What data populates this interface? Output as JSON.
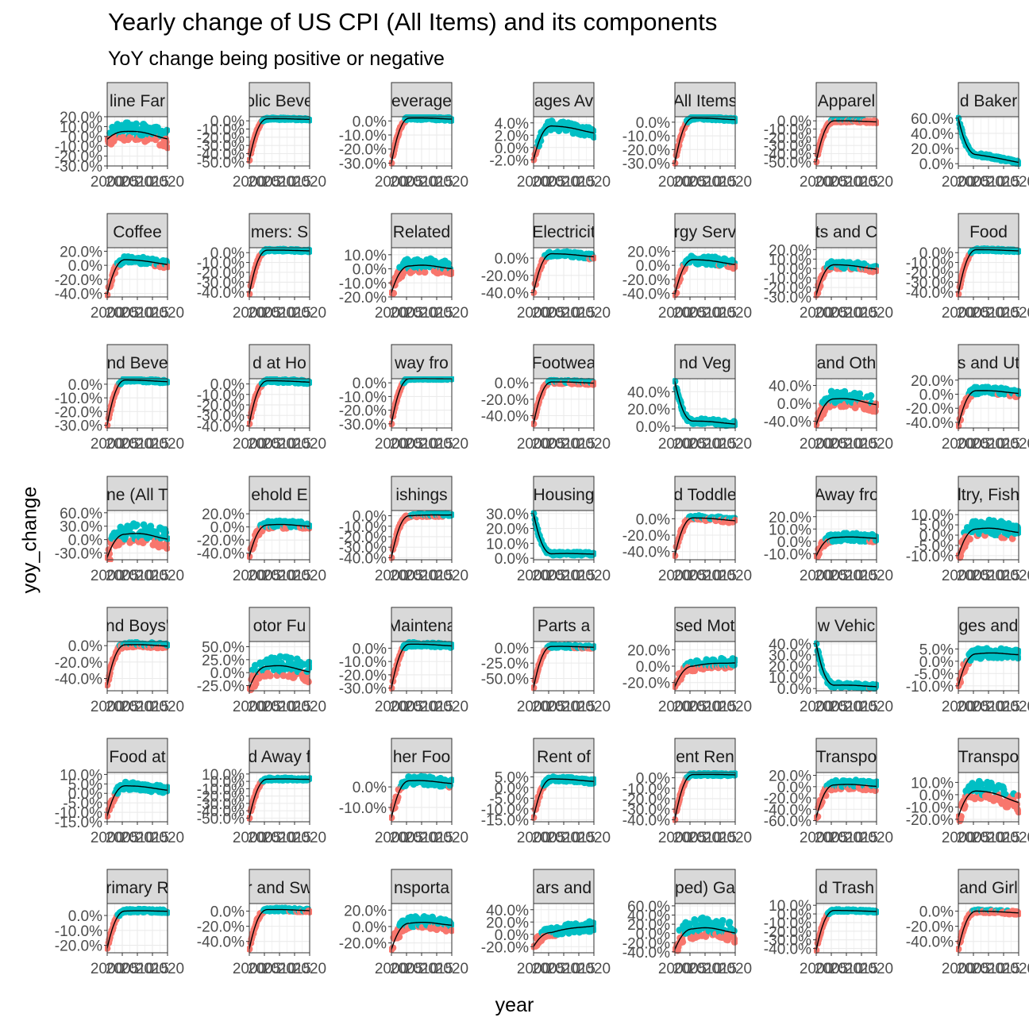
{
  "title": "Yearly change of US CPI (All Items) and its components",
  "subtitle": "YoY change being positive or negative",
  "xlabel": "year",
  "ylabel": "yoy_change",
  "colors": {
    "positive": "#00BFC4",
    "negative": "#F8766D",
    "smooth": "#000000",
    "strip_fill": "#D9D9D9",
    "grid": "#EBEBEB",
    "axis_text": "#4D4D4D"
  },
  "chart_data": {
    "type": "scatter",
    "layout": "facet_wrap 7 columns x 7 rows, free y scales",
    "x_ticks": [
      "2000",
      "2005",
      "2010",
      "2015",
      "2020"
    ],
    "xlim": [
      2000,
      2020
    ],
    "series": [
      {
        "name": "positive",
        "marker": "point"
      },
      {
        "name": "negative",
        "marker": "point"
      },
      {
        "name": "smooth",
        "marker": "line"
      }
    ],
    "facets": [
      {
        "strip": "line Far",
        "ylim": [
          -30,
          20
        ],
        "y_ticks": [
          "20.0%",
          "10.0%",
          "0.0%",
          "-10.0%",
          "-20.0%",
          "-30.0%"
        ],
        "first": -3,
        "peak": 5,
        "end": -1,
        "spread": 9
      },
      {
        "strip": "olic Beve",
        "ylim": [
          -55,
          5
        ],
        "y_ticks": [
          "0.0%",
          "-10.0%",
          "-20.0%",
          "-30.0%",
          "-40.0%",
          "-50.0%"
        ],
        "first": -48,
        "peak": 2.5,
        "end": 2,
        "spread": 1
      },
      {
        "strip": "everage",
        "ylim": [
          -32,
          3
        ],
        "y_ticks": [
          "0.0%",
          "-10.0%",
          "-20.0%",
          "-30.0%"
        ],
        "first": -30,
        "peak": 2,
        "end": 1.5,
        "spread": 1
      },
      {
        "strip": "ages Av",
        "ylim": [
          -3,
          5
        ],
        "y_ticks": [
          "4.0%",
          "2.0%",
          "0.0%",
          "-2.0%"
        ],
        "first": -2,
        "peak": 3.5,
        "end": 2.5,
        "spread": 0.8
      },
      {
        "strip": "All Items",
        "ylim": [
          -32,
          4
        ],
        "y_ticks": [
          "0.0%",
          "-10.0%",
          "-20.0%",
          "-30.0%"
        ],
        "first": -30,
        "peak": 3,
        "end": 2,
        "spread": 1
      },
      {
        "strip": "Apparel",
        "ylim": [
          -55,
          5
        ],
        "y_ticks": [
          "0.0%",
          "-10.0%",
          "-20.0%",
          "-30.0%",
          "-40.0%",
          "-50.0%"
        ],
        "first": -50,
        "peak": 0,
        "end": -1,
        "spread": 1.5
      },
      {
        "strip": "d Baker",
        "ylim": [
          -3,
          62
        ],
        "y_ticks": [
          "60.0%",
          "40.0%",
          "20.0%",
          "0.0%"
        ],
        "first": 60,
        "peak": 12,
        "end": 2,
        "spread": 2
      },
      {
        "strip": "Coffee",
        "ylim": [
          -45,
          25
        ],
        "y_ticks": [
          "20.0%",
          "0.0%",
          "-20.0%",
          "-40.0%"
        ],
        "first": -42,
        "peak": 8,
        "end": 2,
        "spread": 5
      },
      {
        "strip": "mers: S",
        "ylim": [
          -45,
          5
        ],
        "y_ticks": [
          "0.0%",
          "-10.0%",
          "-20.0%",
          "-30.0%",
          "-40.0%"
        ],
        "first": -42,
        "peak": 2.5,
        "end": 2,
        "spread": 1
      },
      {
        "strip": "Related",
        "ylim": [
          -20,
          15
        ],
        "y_ticks": [
          "10.0%",
          "0.0%",
          "-10.0%",
          "-20.0%"
        ],
        "first": -17,
        "peak": 2,
        "end": 1,
        "spread": 5
      },
      {
        "strip": "Electricit",
        "ylim": [
          -45,
          12
        ],
        "y_ticks": [
          "0.0%",
          "-20.0%",
          "-40.0%"
        ],
        "first": -40,
        "peak": 5,
        "end": 2,
        "spread": 3
      },
      {
        "strip": "rgy Serv",
        "ylim": [
          -45,
          25
        ],
        "y_ticks": [
          "20.0%",
          "0.0%",
          "-20.0%",
          "-40.0%"
        ],
        "first": -42,
        "peak": 8,
        "end": 2,
        "spread": 6
      },
      {
        "strip": "ts and C",
        "ylim": [
          -30,
          22
        ],
        "y_ticks": [
          "20.0%",
          "10.0%",
          "0.0%",
          "-10.0%",
          "-20.0%",
          "-30.0%"
        ],
        "first": -28,
        "peak": 4,
        "end": 0,
        "spread": 4
      },
      {
        "strip": "Food",
        "ylim": [
          -45,
          5
        ],
        "y_ticks": [
          "0.0%",
          "-10.0%",
          "-20.0%",
          "-30.0%",
          "-40.0%"
        ],
        "first": -42,
        "peak": 3,
        "end": 2,
        "spread": 1
      },
      {
        "strip": "nd Beve",
        "ylim": [
          -32,
          4
        ],
        "y_ticks": [
          "0.0%",
          "-10.0%",
          "-20.0%",
          "-30.0%"
        ],
        "first": -30,
        "peak": 3,
        "end": 2,
        "spread": 1
      },
      {
        "strip": "d at Ho",
        "ylim": [
          -42,
          5
        ],
        "y_ticks": [
          "0.0%",
          "-10.0%",
          "-20.0%",
          "-30.0%",
          "-40.0%"
        ],
        "first": -38,
        "peak": 3,
        "end": 2,
        "spread": 1.5
      },
      {
        "strip": "way fro",
        "ylim": [
          -33,
          3
        ],
        "y_ticks": [
          "0.0%",
          "-10.0%",
          "-20.0%",
          "-30.0%"
        ],
        "first": -30,
        "peak": 3,
        "end": 3,
        "spread": 0.5
      },
      {
        "strip": "Footwea",
        "ylim": [
          -55,
          5
        ],
        "y_ticks": [
          "0.0%",
          "-20.0%",
          "-40.0%"
        ],
        "first": -50,
        "peak": 1,
        "end": 0,
        "spread": 2
      },
      {
        "strip": "nd Veg",
        "ylim": [
          -2,
          55
        ],
        "y_ticks": [
          "40.0%",
          "20.0%",
          "0.0%"
        ],
        "first": 52,
        "peak": 6,
        "end": 3,
        "spread": 3
      },
      {
        "strip": "and Oth",
        "ylim": [
          -55,
          55
        ],
        "y_ticks": [
          "40.0%",
          "0.0%",
          "-40.0%"
        ],
        "first": -48,
        "peak": 10,
        "end": 0,
        "spread": 18
      },
      {
        "strip": "s and Ut",
        "ylim": [
          -48,
          22
        ],
        "y_ticks": [
          "20.0%",
          "0.0%",
          "-20.0%",
          "-40.0%"
        ],
        "first": -45,
        "peak": 5,
        "end": 2,
        "spread": 5
      },
      {
        "strip": "ne (All T",
        "ylim": [
          -45,
          65
        ],
        "y_ticks": [
          "60.0%",
          "30.0%",
          "0.0%",
          "-30.0%"
        ],
        "first": -40,
        "peak": 12,
        "end": 5,
        "spread": 22
      },
      {
        "strip": "ehold E",
        "ylim": [
          -50,
          25
        ],
        "y_ticks": [
          "20.0%",
          "0.0%",
          "-20.0%",
          "-40.0%"
        ],
        "first": -45,
        "peak": 3,
        "end": 2,
        "spread": 6
      },
      {
        "strip": "ishings",
        "ylim": [
          -42,
          5
        ],
        "y_ticks": [
          "0.0%",
          "-10.0%",
          "-20.0%",
          "-30.0%",
          "-40.0%"
        ],
        "first": -40,
        "peak": 0,
        "end": 1,
        "spread": 1.5
      },
      {
        "strip": "Housing",
        "ylim": [
          -1,
          32
        ],
        "y_ticks": [
          "30.0%",
          "20.0%",
          "10.0%",
          "0.0%"
        ],
        "first": 30,
        "peak": 3,
        "end": 3,
        "spread": 1
      },
      {
        "strip": "d Toddle",
        "ylim": [
          -50,
          10
        ],
        "y_ticks": [
          "0.0%",
          "-20.0%",
          "-40.0%"
        ],
        "first": -45,
        "peak": 1,
        "end": -2,
        "spread": 3
      },
      {
        "strip": "Away fro",
        "ylim": [
          -15,
          25
        ],
        "y_ticks": [
          "20.0%",
          "10.0%",
          "0.0%",
          "-10.0%"
        ],
        "first": -12,
        "peak": 3,
        "end": 3,
        "spread": 3
      },
      {
        "strip": "ltry, Fish",
        "ylim": [
          -12,
          12
        ],
        "y_ticks": [
          "10.0%",
          "5.0%",
          "0.0%",
          "-5.0%",
          "-10.0%"
        ],
        "first": -10,
        "peak": 3,
        "end": 2,
        "spread": 4
      },
      {
        "strip": "nd Boys'",
        "ylim": [
          -55,
          5
        ],
        "y_ticks": [
          "0.0%",
          "-20.0%",
          "-40.0%"
        ],
        "first": -48,
        "peak": 1,
        "end": 0,
        "spread": 3
      },
      {
        "strip": "otor Fu",
        "ylim": [
          -35,
          60
        ],
        "y_ticks": [
          "50.0%",
          "25.0%",
          "0.0%",
          "-25.0%"
        ],
        "first": -30,
        "peak": 12,
        "end": 5,
        "spread": 20
      },
      {
        "strip": "Maintena",
        "ylim": [
          -32,
          5
        ],
        "y_ticks": [
          "0.0%",
          "-10.0%",
          "-20.0%",
          "-30.0%"
        ],
        "first": -30,
        "peak": 3,
        "end": 2,
        "spread": 1.5
      },
      {
        "strip": "Parts a",
        "ylim": [
          -70,
          10
        ],
        "y_ticks": [
          "0.0%",
          "-25.0%",
          "-50.0%"
        ],
        "first": -65,
        "peak": 2,
        "end": 1,
        "spread": 2
      },
      {
        "strip": "sed Mot",
        "ylim": [
          -30,
          30
        ],
        "y_ticks": [
          "20.0%",
          "0.0%",
          "-20.0%"
        ],
        "first": -25,
        "peak": 0,
        "end": 5,
        "spread": 6
      },
      {
        "strip": "w Vehic",
        "ylim": [
          -2,
          42
        ],
        "y_ticks": [
          "40.0%",
          "30.0%",
          "20.0%",
          "10.0%",
          "0.0%"
        ],
        "first": 40,
        "peak": 3,
        "end": 2,
        "spread": 2
      },
      {
        "strip": "ges and",
        "ylim": [
          -12,
          8
        ],
        "y_ticks": [
          "5.0%",
          "0.0%",
          "-5.0%",
          "-10.0%"
        ],
        "first": -10,
        "peak": 3,
        "end": 3,
        "spread": 2
      },
      {
        "strip": "Food at",
        "ylim": [
          -15,
          11
        ],
        "y_ticks": [
          "10.0%",
          "5.0%",
          "0.0%",
          "-5.0%",
          "-10.0%",
          "-15.0%"
        ],
        "first": -12,
        "peak": 4,
        "end": 2,
        "spread": 2
      },
      {
        "strip": "d Away f",
        "ylim": [
          -55,
          12
        ],
        "y_ticks": [
          "10.0%",
          "0.0%",
          "-10.0%",
          "-20.0%",
          "-30.0%",
          "-40.0%",
          "-50.0%"
        ],
        "first": -50,
        "peak": 3,
        "end": 3,
        "spread": 1.5
      },
      {
        "strip": "her Foo",
        "ylim": [
          -17,
          7
        ],
        "y_ticks": [
          "0.0%",
          "-10.0%"
        ],
        "first": -15,
        "peak": 3,
        "end": 2,
        "spread": 2
      },
      {
        "strip": "Rent of",
        "ylim": [
          -16,
          7
        ],
        "y_ticks": [
          "5.0%",
          "0.0%",
          "-5.0%",
          "-10.0%",
          "-15.0%"
        ],
        "first": -14,
        "peak": 4,
        "end": 3,
        "spread": 1
      },
      {
        "strip": "ent Ren",
        "ylim": [
          -42,
          5
        ],
        "y_ticks": [
          "0.0%",
          "-10.0%",
          "-20.0%",
          "-30.0%",
          "-40.0%"
        ],
        "first": -40,
        "peak": 3,
        "end": 3,
        "spread": 1
      },
      {
        "strip": "Transpo",
        "ylim": [
          -62,
          25
        ],
        "y_ticks": [
          "20.0%",
          "0.0%",
          "-20.0%",
          "-40.0%",
          "-60.0%"
        ],
        "first": -55,
        "peak": 3,
        "end": 2,
        "spread": 8
      },
      {
        "strip": "Transpo",
        "ylim": [
          -22,
          18
        ],
        "y_ticks": [
          "10.0%",
          "0.0%",
          "-10.0%",
          "-20.0%"
        ],
        "first": -18,
        "peak": 3,
        "end": -5,
        "spread": 8
      },
      {
        "strip": "rimary R",
        "ylim": [
          -25,
          8
        ],
        "y_ticks": [
          "0.0%",
          "-10.0%",
          "-20.0%"
        ],
        "first": -22,
        "peak": 3,
        "end": 3,
        "spread": 1
      },
      {
        "strip": "r and Sw",
        "ylim": [
          -55,
          10
        ],
        "y_ticks": [
          "0.0%",
          "-20.0%",
          "-40.0%"
        ],
        "first": -50,
        "peak": 2,
        "end": 1,
        "spread": 2
      },
      {
        "strip": "nsporta",
        "ylim": [
          -32,
          28
        ],
        "y_ticks": [
          "20.0%",
          "0.0%",
          "-20.0%"
        ],
        "first": -28,
        "peak": 4,
        "end": 3,
        "spread": 8
      },
      {
        "strip": "ars and",
        "ylim": [
          -30,
          50
        ],
        "y_ticks": [
          "40.0%",
          "20.0%",
          "0.0%",
          "-20.0%"
        ],
        "first": -20,
        "peak": 3,
        "end": 15,
        "spread": 8
      },
      {
        "strip": "ped) Ga",
        "ylim": [
          -42,
          65
        ],
        "y_ticks": [
          "60.0%",
          "40.0%",
          "20.0%",
          "0.0%",
          "-20.0%",
          "-40.0%"
        ],
        "first": -35,
        "peak": 10,
        "end": 5,
        "spread": 22
      },
      {
        "strip": "d Trash",
        "ylim": [
          -45,
          12
        ],
        "y_ticks": [
          "10.0%",
          "0.0%",
          "-10.0%",
          "-20.0%",
          "-30.0%",
          "-40.0%"
        ],
        "first": -42,
        "peak": 4,
        "end": 3,
        "spread": 1
      },
      {
        "strip": "and Girl",
        "ylim": [
          -55,
          10
        ],
        "y_ticks": [
          "0.0%",
          "-20.0%",
          "-40.0%"
        ],
        "first": -50,
        "peak": 0,
        "end": -2,
        "spread": 2
      }
    ]
  }
}
